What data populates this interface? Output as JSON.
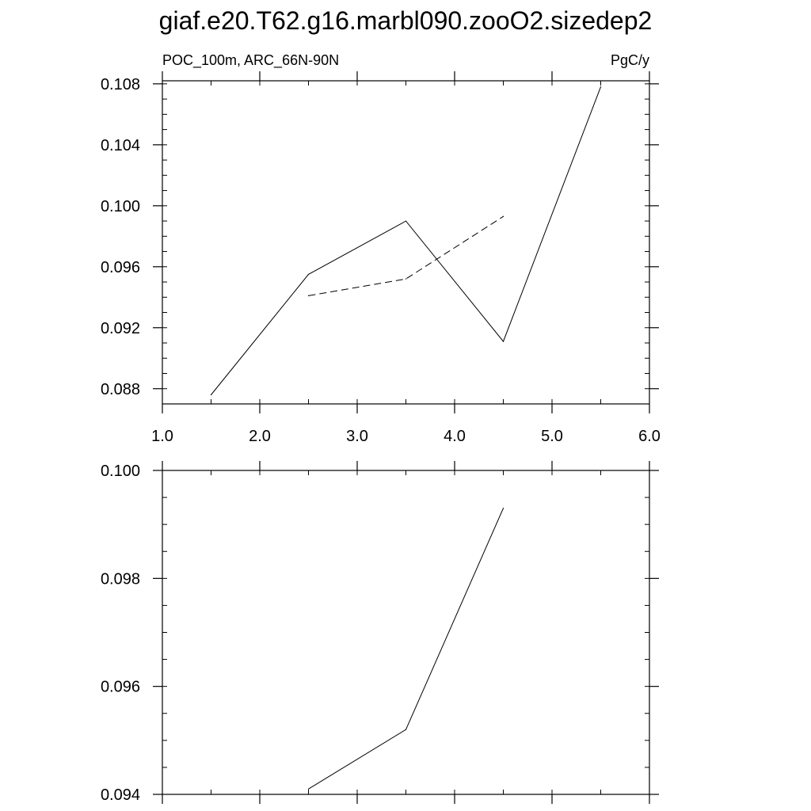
{
  "figure_title": "giaf.e20.T62.g16.marbl090.zooO2.sizedep2",
  "chart_data": [
    {
      "type": "line",
      "left_label": "POC_100m, ARC_66N-90N",
      "right_label": "PgC/y",
      "xlim": [
        1.0,
        6.0
      ],
      "ylim": [
        0.087,
        0.1082
      ],
      "x_ticks": [
        1.0,
        2.0,
        3.0,
        4.0,
        5.0,
        6.0
      ],
      "x_tick_labels": [
        "1.0",
        "2.0",
        "3.0",
        "4.0",
        "5.0",
        "6.0"
      ],
      "x_minor_step": 0.5,
      "y_ticks": [
        0.088,
        0.092,
        0.096,
        0.1,
        0.104,
        0.108
      ],
      "y_tick_labels": [
        "0.088",
        "0.092",
        "0.096",
        "0.100",
        "0.104",
        "0.108"
      ],
      "y_minor_step": 0.001,
      "grid": false,
      "series": [
        {
          "style": "solid",
          "color": "#000000",
          "x": [
            1.5,
            2.5,
            3.5,
            4.5,
            5.5
          ],
          "y": [
            0.0876,
            0.0955,
            0.099,
            0.0911,
            0.1078
          ]
        },
        {
          "style": "dashed",
          "color": "#000000",
          "x": [
            2.5,
            3.5,
            4.5
          ],
          "y": [
            0.0941,
            0.0952,
            0.0993
          ]
        }
      ]
    },
    {
      "type": "line",
      "left_label": "",
      "right_label": "",
      "xlim": [
        1.0,
        6.0
      ],
      "ylim": [
        0.094,
        0.1
      ],
      "x_ticks": [
        1.0,
        2.0,
        3.0,
        4.0,
        5.0,
        6.0
      ],
      "x_tick_labels": [],
      "x_minor_step": 0.5,
      "y_ticks": [
        0.094,
        0.096,
        0.098,
        0.1
      ],
      "y_tick_labels": [
        "0.094",
        "0.096",
        "0.098",
        "0.100"
      ],
      "y_minor_step": 0.0005,
      "grid": false,
      "series": [
        {
          "style": "solid",
          "color": "#000000",
          "x": [
            2.5,
            3.5,
            4.5
          ],
          "y": [
            0.0941,
            0.0952,
            0.0993
          ]
        }
      ]
    }
  ]
}
